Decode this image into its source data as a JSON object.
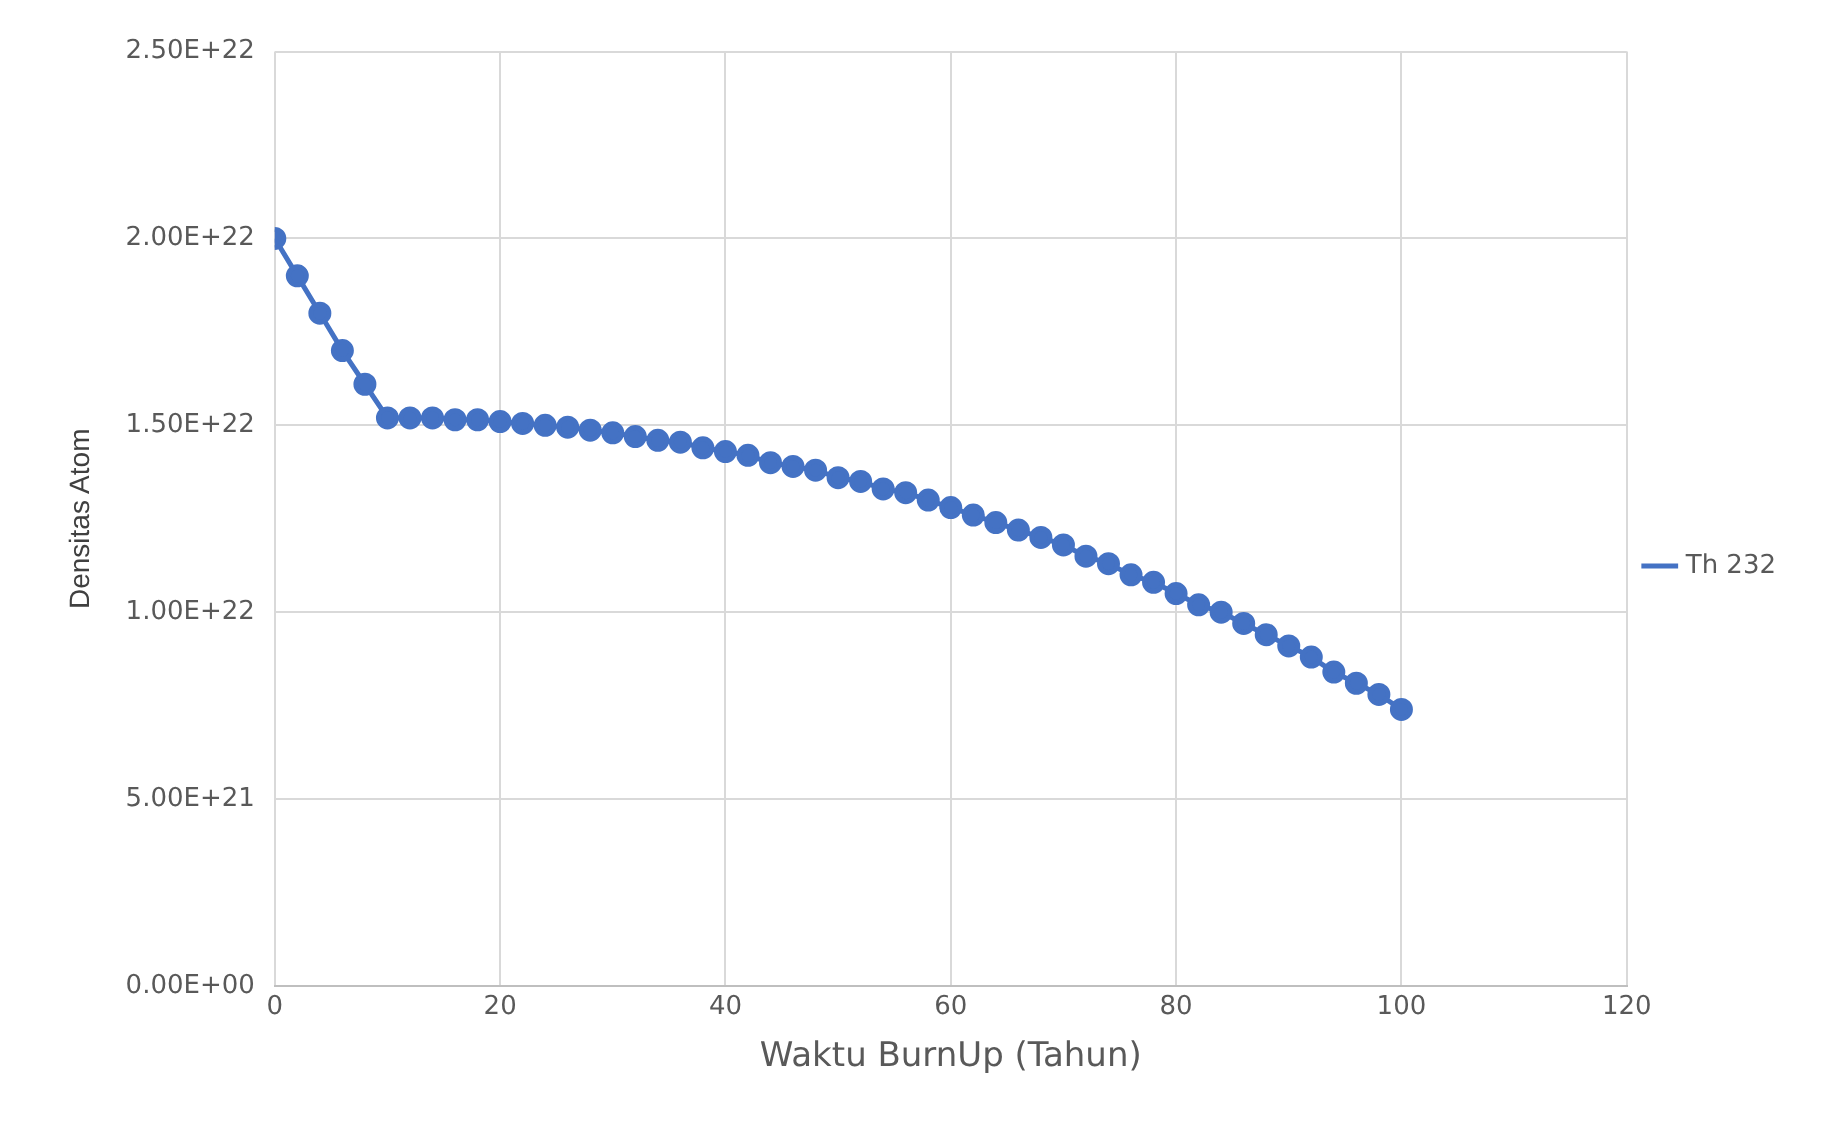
{
  "chart_data": {
    "type": "line",
    "xlabel": "Waktu BurnUp (Tahun)",
    "ylabel": "Densitas Atom",
    "x": [
      0,
      2,
      4,
      6,
      8,
      10,
      12,
      14,
      16,
      18,
      20,
      22,
      24,
      26,
      28,
      30,
      32,
      34,
      36,
      38,
      40,
      42,
      44,
      46,
      48,
      50,
      52,
      54,
      56,
      58,
      60,
      62,
      64,
      66,
      68,
      70,
      72,
      74,
      76,
      78,
      80,
      82,
      84,
      86,
      88,
      90,
      92,
      94,
      96,
      98,
      100
    ],
    "series": [
      {
        "name": "Th 232",
        "color": "#4472c4",
        "values": [
          2e+22,
          1.9e+22,
          1.8e+22,
          1.7e+22,
          1.61e+22,
          1.52e+22,
          1.52e+22,
          1.52e+22,
          1.515e+22,
          1.515e+22,
          1.51e+22,
          1.505e+22,
          1.5e+22,
          1.495e+22,
          1.487e+22,
          1.48e+22,
          1.47e+22,
          1.46e+22,
          1.455e+22,
          1.44e+22,
          1.43e+22,
          1.42e+22,
          1.4e+22,
          1.39e+22,
          1.38e+22,
          1.36e+22,
          1.35e+22,
          1.33e+22,
          1.32e+22,
          1.3e+22,
          1.28e+22,
          1.26e+22,
          1.24e+22,
          1.22e+22,
          1.2e+22,
          1.18e+22,
          1.15e+22,
          1.13e+22,
          1.1e+22,
          1.08e+22,
          1.05e+22,
          1.02e+22,
          1e+22,
          9.7e+21,
          9.4e+21,
          9.1e+21,
          8.8e+21,
          8.4e+21,
          8.1e+21,
          7.8e+21,
          7.4e+21
        ]
      }
    ],
    "xlim": [
      0,
      120
    ],
    "xticks": [
      0,
      20,
      40,
      60,
      80,
      100,
      120
    ],
    "ylim": [
      0,
      2.5e+22
    ],
    "yticks": [
      {
        "value": 0,
        "label": "0.00E+00"
      },
      {
        "value": 5e+21,
        "label": "5.00E+21"
      },
      {
        "value": 1e+22,
        "label": "1.00E+22"
      },
      {
        "value": 1.5e+22,
        "label": "1.50E+22"
      },
      {
        "value": 2e+22,
        "label": "2.00E+22"
      },
      {
        "value": 2.5e+22,
        "label": "2.50E+22"
      }
    ],
    "grid": true,
    "legend": "right",
    "marker": "circle",
    "line_style": "solid"
  }
}
